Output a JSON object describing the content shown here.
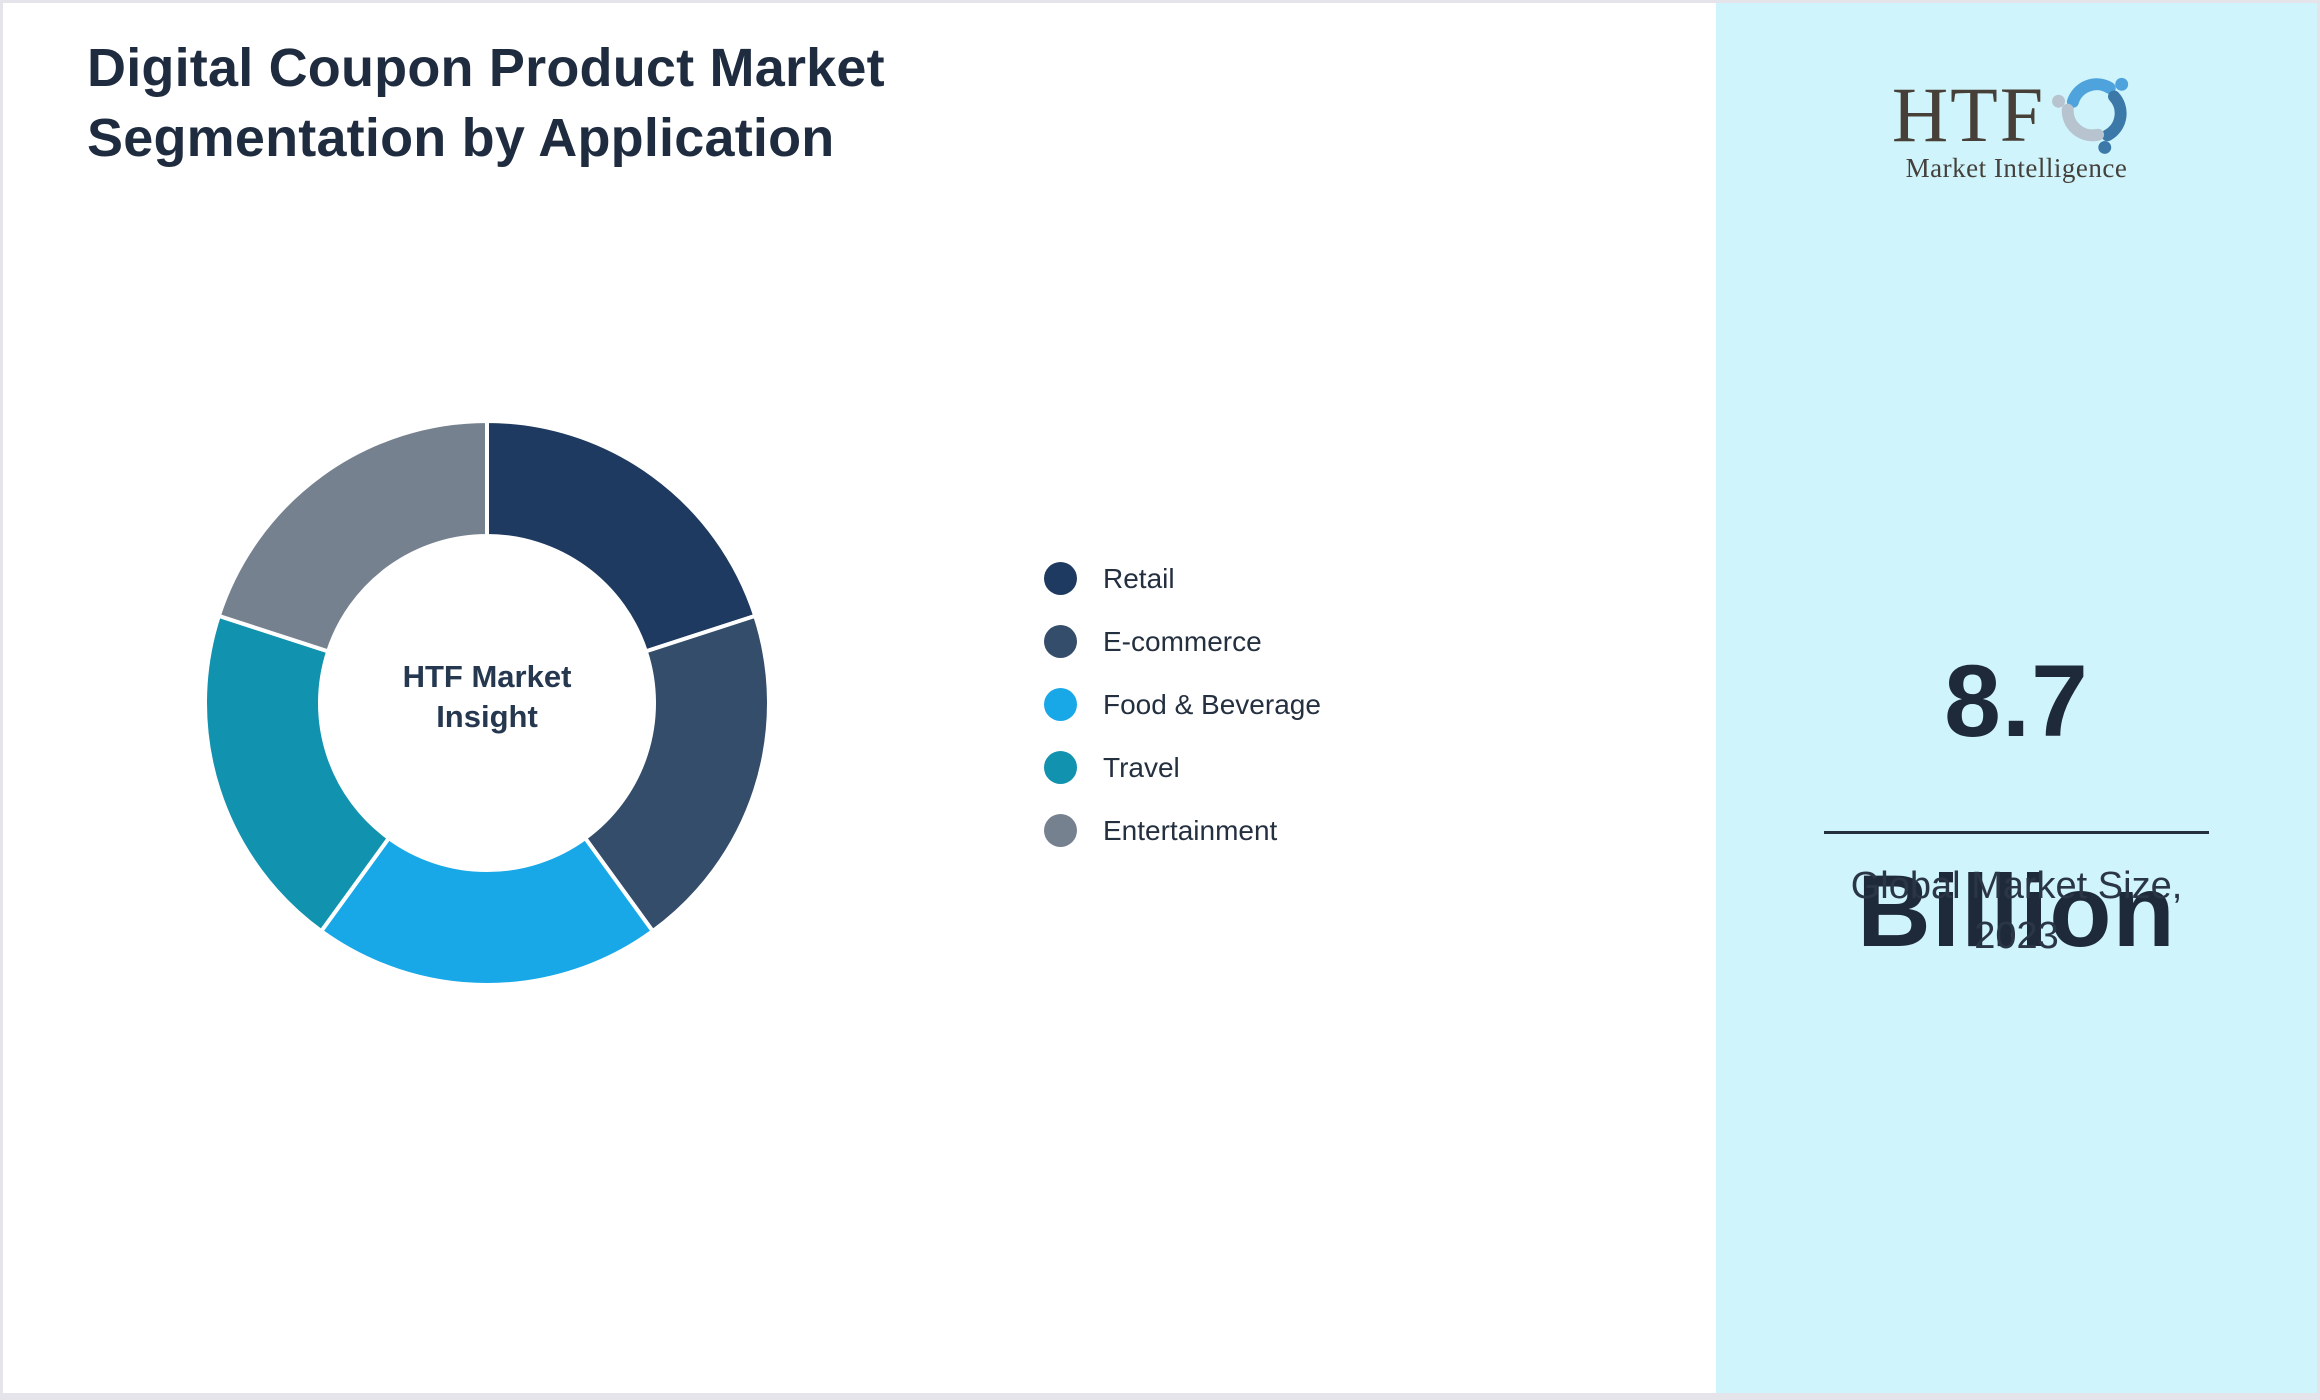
{
  "header": {
    "title": "Digital Coupon Product Market Segmentation by Application"
  },
  "chart_data": {
    "type": "pie",
    "variant": "donut",
    "title": "Digital Coupon Product Market Segmentation by Application",
    "center_label": "HTF Market Insight",
    "categories": [
      "Retail",
      "E-commerce",
      "Food & Beverage",
      "Travel",
      "Entertainment"
    ],
    "values": [
      20,
      20,
      20,
      20,
      20
    ],
    "colors": [
      "#1f3a60",
      "#344d6b",
      "#18a8e8",
      "#1192ae",
      "#76818f"
    ],
    "legend_position": "right",
    "data_labels_shown": false,
    "start_angle_deg": 0,
    "direction": "clockwise"
  },
  "sidebar": {
    "background_color": "#d0f4fb",
    "logo": {
      "text": "HTF",
      "subtext": "Market Intelligence"
    },
    "market_size_value": "8.7",
    "market_size_unit": "Billion",
    "caption": "Global Market Size, 2023"
  },
  "theme": {
    "title_color": "#1f2c3f",
    "accent_navy": "#1f3a60",
    "accent_blue": "#18a8e8",
    "accent_teal": "#1192ae"
  }
}
